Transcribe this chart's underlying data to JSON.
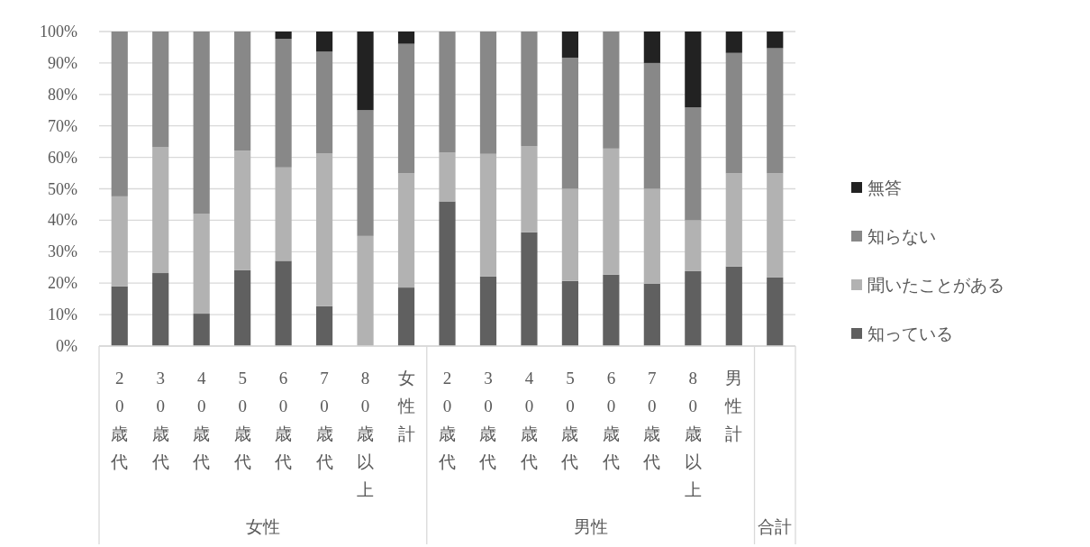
{
  "chart_data": {
    "type": "bar",
    "stacked": true,
    "categories": [
      "20歳代",
      "30歳代",
      "40歳代",
      "50歳代",
      "60歳代",
      "70歳代",
      "80歳以上",
      "女性計",
      "20歳代",
      "30歳代",
      "40歳代",
      "50歳代",
      "60歳代",
      "70歳代",
      "80歳以上",
      "男性計",
      null
    ],
    "series": [
      {
        "name": "知っている",
        "color": "#606060",
        "values": [
          19.0,
          23.2,
          10.3,
          24.1,
          27.1,
          12.7,
          0,
          18.6,
          46.0,
          22.1,
          36.2,
          20.7,
          22.7,
          19.8,
          23.8,
          25.3,
          21.8
        ]
      },
      {
        "name": "聞いたことがある",
        "color": "#b2b2b2",
        "values": [
          28.6,
          40.0,
          31.7,
          38.0,
          29.7,
          48.5,
          35.0,
          36.3,
          15.5,
          39.0,
          27.3,
          29.3,
          40.1,
          30.2,
          16.2,
          29.6,
          33.1
        ]
      },
      {
        "name": "知らない",
        "color": "#888888",
        "values": [
          52.4,
          36.8,
          58.0,
          37.9,
          40.9,
          32.4,
          40.0,
          41.2,
          38.5,
          38.9,
          36.5,
          41.7,
          37.2,
          40.0,
          35.9,
          38.3,
          39.8
        ]
      },
      {
        "name": "無答",
        "color": "#222222",
        "values": [
          0,
          0,
          0,
          0,
          2.3,
          6.4,
          25.0,
          3.9,
          0,
          0,
          0,
          8.3,
          0,
          10.0,
          24.1,
          6.8,
          5.3
        ]
      }
    ],
    "ylim": [
      0,
      100
    ],
    "yticks": [
      {
        "value": 0,
        "label": "0%"
      },
      {
        "value": 10,
        "label": "10%"
      },
      {
        "value": 20,
        "label": "20%"
      },
      {
        "value": 30,
        "label": "30%"
      },
      {
        "value": 40,
        "label": "40%"
      },
      {
        "value": 50,
        "label": "50%"
      },
      {
        "value": 60,
        "label": "60%"
      },
      {
        "value": 70,
        "label": "70%"
      },
      {
        "value": 80,
        "label": "80%"
      },
      {
        "value": 90,
        "label": "90%"
      },
      {
        "value": 100,
        "label": "100%"
      }
    ],
    "grid": "y",
    "legend": "right",
    "annotations": [
      "女性",
      "男性",
      "合計"
    ]
  }
}
